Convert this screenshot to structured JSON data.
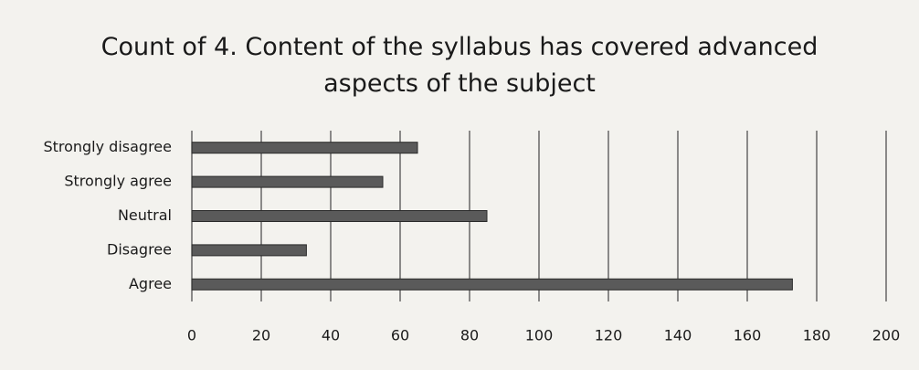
{
  "chart_data": {
    "type": "bar",
    "orientation": "horizontal",
    "title": "Count of 4. Content of the syllabus has covered advanced aspects of the subject",
    "categories": [
      "Strongly disagree",
      "Strongly agree",
      "Neutral",
      "Disagree",
      "Agree"
    ],
    "values": [
      65,
      55,
      85,
      33,
      173
    ],
    "color": "#5a5a5a",
    "xlim": [
      0,
      200
    ],
    "xticks": [
      0,
      20,
      40,
      60,
      80,
      100,
      120,
      140,
      160,
      180,
      200
    ],
    "grid": true
  }
}
